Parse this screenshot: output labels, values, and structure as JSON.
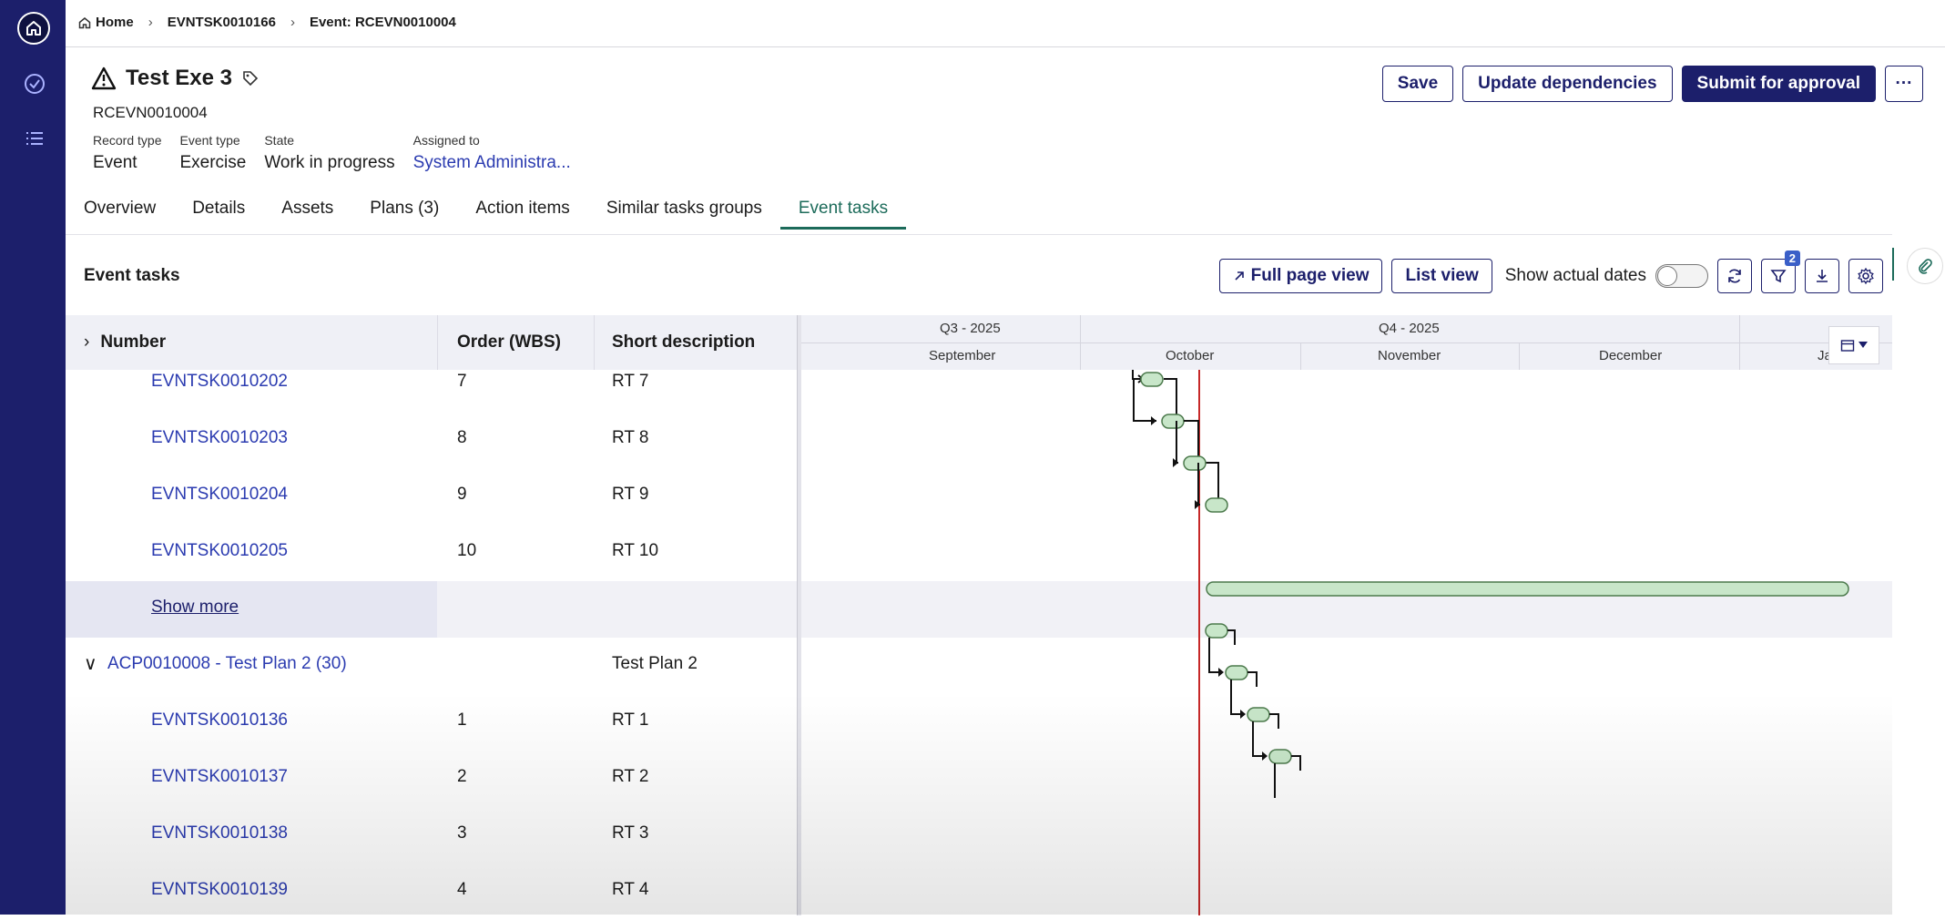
{
  "breadcrumb": {
    "home": "Home",
    "parent": "EVNTSK0010166",
    "current": "Event: RCEVN0010004"
  },
  "record": {
    "title": "Test Exe 3",
    "number": "RCEVN0010004",
    "fields": [
      {
        "label": "Record type",
        "value": "Event"
      },
      {
        "label": "Event type",
        "value": "Exercise"
      },
      {
        "label": "State",
        "value": "Work in progress"
      },
      {
        "label": "Assigned to",
        "value": "System Administra..."
      }
    ]
  },
  "header_buttons": {
    "save": "Save",
    "update": "Update dependencies",
    "submit": "Submit for approval",
    "more": "···"
  },
  "tabs": [
    "Overview",
    "Details",
    "Assets",
    "Plans (3)",
    "Action items",
    "Similar tasks groups",
    "Event tasks"
  ],
  "panel": {
    "title": "Event tasks",
    "full_page": "Full page view",
    "list_view": "List view",
    "show_actual": "Show actual dates",
    "filter_count": "2"
  },
  "columns": {
    "number": "Number",
    "order": "Order (WBS)",
    "desc": "Short description"
  },
  "rows": [
    {
      "number": "EVNTSK0010202",
      "order": "7",
      "desc": "RT 7"
    },
    {
      "number": "EVNTSK0010203",
      "order": "8",
      "desc": "RT 8"
    },
    {
      "number": "EVNTSK0010204",
      "order": "9",
      "desc": "RT 9"
    },
    {
      "number": "EVNTSK0010205",
      "order": "10",
      "desc": "RT 10"
    },
    {
      "number": "Show more",
      "order": "",
      "desc": ""
    },
    {
      "number": "ACP0010008 - Test Plan 2 (30)",
      "order": "",
      "desc": "Test Plan 2"
    },
    {
      "number": "EVNTSK0010136",
      "order": "1",
      "desc": "RT 1"
    },
    {
      "number": "EVNTSK0010137",
      "order": "2",
      "desc": "RT 2"
    },
    {
      "number": "EVNTSK0010138",
      "order": "3",
      "desc": "RT 3"
    },
    {
      "number": "EVNTSK0010139",
      "order": "4",
      "desc": "RT 4"
    }
  ],
  "gantt": {
    "quarters": [
      "Q3 - 2025",
      "Q4 - 2025"
    ],
    "months": [
      "September",
      "October",
      "November",
      "December",
      "January"
    ]
  },
  "colors": {
    "brand": "#1c1f6b",
    "accent": "#1c6b5a",
    "link": "#2b3bb0",
    "today_line": "#c62828",
    "bar_fill": "#c8e6c9",
    "bar_stroke": "#4c7a4c"
  }
}
